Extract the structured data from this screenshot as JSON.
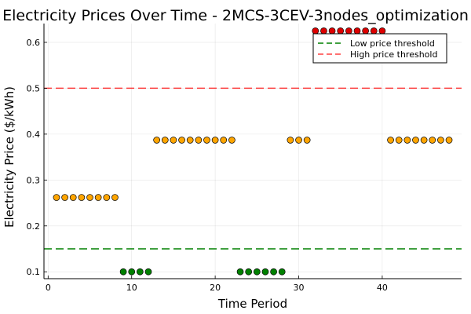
{
  "chart_data": {
    "type": "scatter",
    "title": "Electricity Prices Over Time - 2MCS-3CEV-3nodes_optimization",
    "xlabel": "Time Period",
    "ylabel": "Electricity Price ($/kWh)",
    "xlim": [
      -0.5,
      49.5
    ],
    "ylim": [
      0.085,
      0.641
    ],
    "xticks": [
      0,
      10,
      20,
      30,
      40
    ],
    "yticks": [
      0.1,
      0.2,
      0.3,
      0.4,
      0.5,
      0.6
    ],
    "xtick_labels": [
      "0",
      "10",
      "20",
      "30",
      "40"
    ],
    "ytick_labels": [
      "0.1",
      "0.2",
      "0.3",
      "0.4",
      "0.5",
      "0.6"
    ],
    "grid": true,
    "legend_position": "top-right",
    "colors": {
      "low": "#008000",
      "medium": "#FFA500",
      "high": "#DD0000"
    },
    "x": [
      1,
      2,
      3,
      4,
      5,
      6,
      7,
      8,
      9,
      10,
      11,
      12,
      13,
      14,
      15,
      16,
      17,
      18,
      19,
      20,
      21,
      22,
      23,
      24,
      25,
      26,
      27,
      28,
      29,
      30,
      31,
      32,
      33,
      34,
      35,
      36,
      37,
      38,
      39,
      40,
      41,
      42,
      43,
      44,
      45,
      46,
      47,
      48
    ],
    "y": [
      0.262,
      0.262,
      0.262,
      0.262,
      0.262,
      0.262,
      0.262,
      0.262,
      0.1,
      0.1,
      0.1,
      0.1,
      0.387,
      0.387,
      0.387,
      0.387,
      0.387,
      0.387,
      0.387,
      0.387,
      0.387,
      0.387,
      0.1,
      0.1,
      0.1,
      0.1,
      0.1,
      0.1,
      0.387,
      0.387,
      0.387,
      0.625,
      0.625,
      0.625,
      0.625,
      0.625,
      0.625,
      0.625,
      0.625,
      0.625,
      0.387,
      0.387,
      0.387,
      0.387,
      0.387,
      0.387,
      0.387,
      0.387
    ],
    "thresholds": [
      {
        "name": "Low price threshold",
        "value": 0.15,
        "color": "#008000"
      },
      {
        "name": "High price threshold",
        "value": 0.5,
        "color": "#FF0000"
      }
    ]
  }
}
